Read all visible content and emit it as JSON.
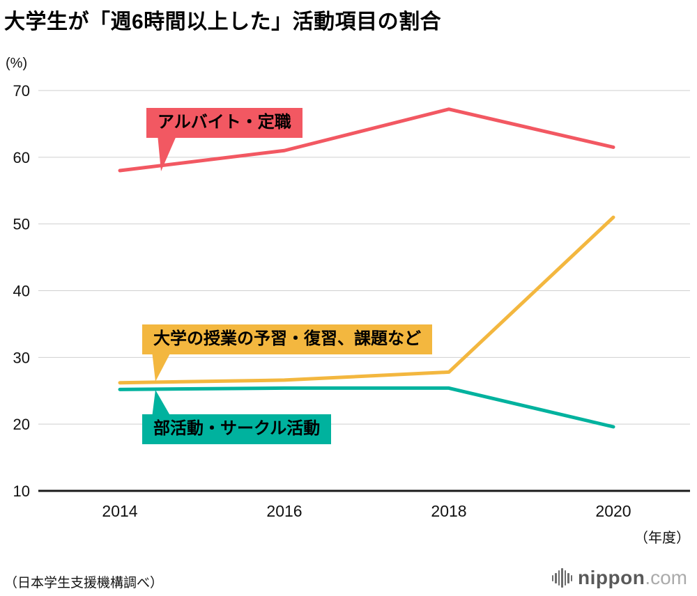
{
  "title": "大学生が「週6時間以上した」活動項目の割合",
  "axes": {
    "y_unit": "(%)",
    "x_unit": "（年度）"
  },
  "source": "（日本学生支援機構調べ）",
  "logo": {
    "name": "nippon",
    "tld": ".com"
  },
  "chart_data": {
    "type": "line",
    "x": [
      "2014",
      "2016",
      "2018",
      "2020"
    ],
    "series": [
      {
        "name": "アルバイト・定職",
        "color": "#f25862",
        "values": [
          58,
          61,
          67.2,
          61.5
        ]
      },
      {
        "name": "大学の授業の予習・復習、課題など",
        "color": "#f3b73f",
        "values": [
          26.2,
          26.6,
          27.8,
          51
        ]
      },
      {
        "name": "部活動・サークル活動",
        "color": "#00b29e",
        "values": [
          25.2,
          25.4,
          25.4,
          19.6
        ]
      }
    ],
    "ylim": [
      10,
      70
    ],
    "yticks": [
      10,
      20,
      30,
      40,
      50,
      60,
      70
    ],
    "grid": true,
    "legend": "callout-labels"
  }
}
